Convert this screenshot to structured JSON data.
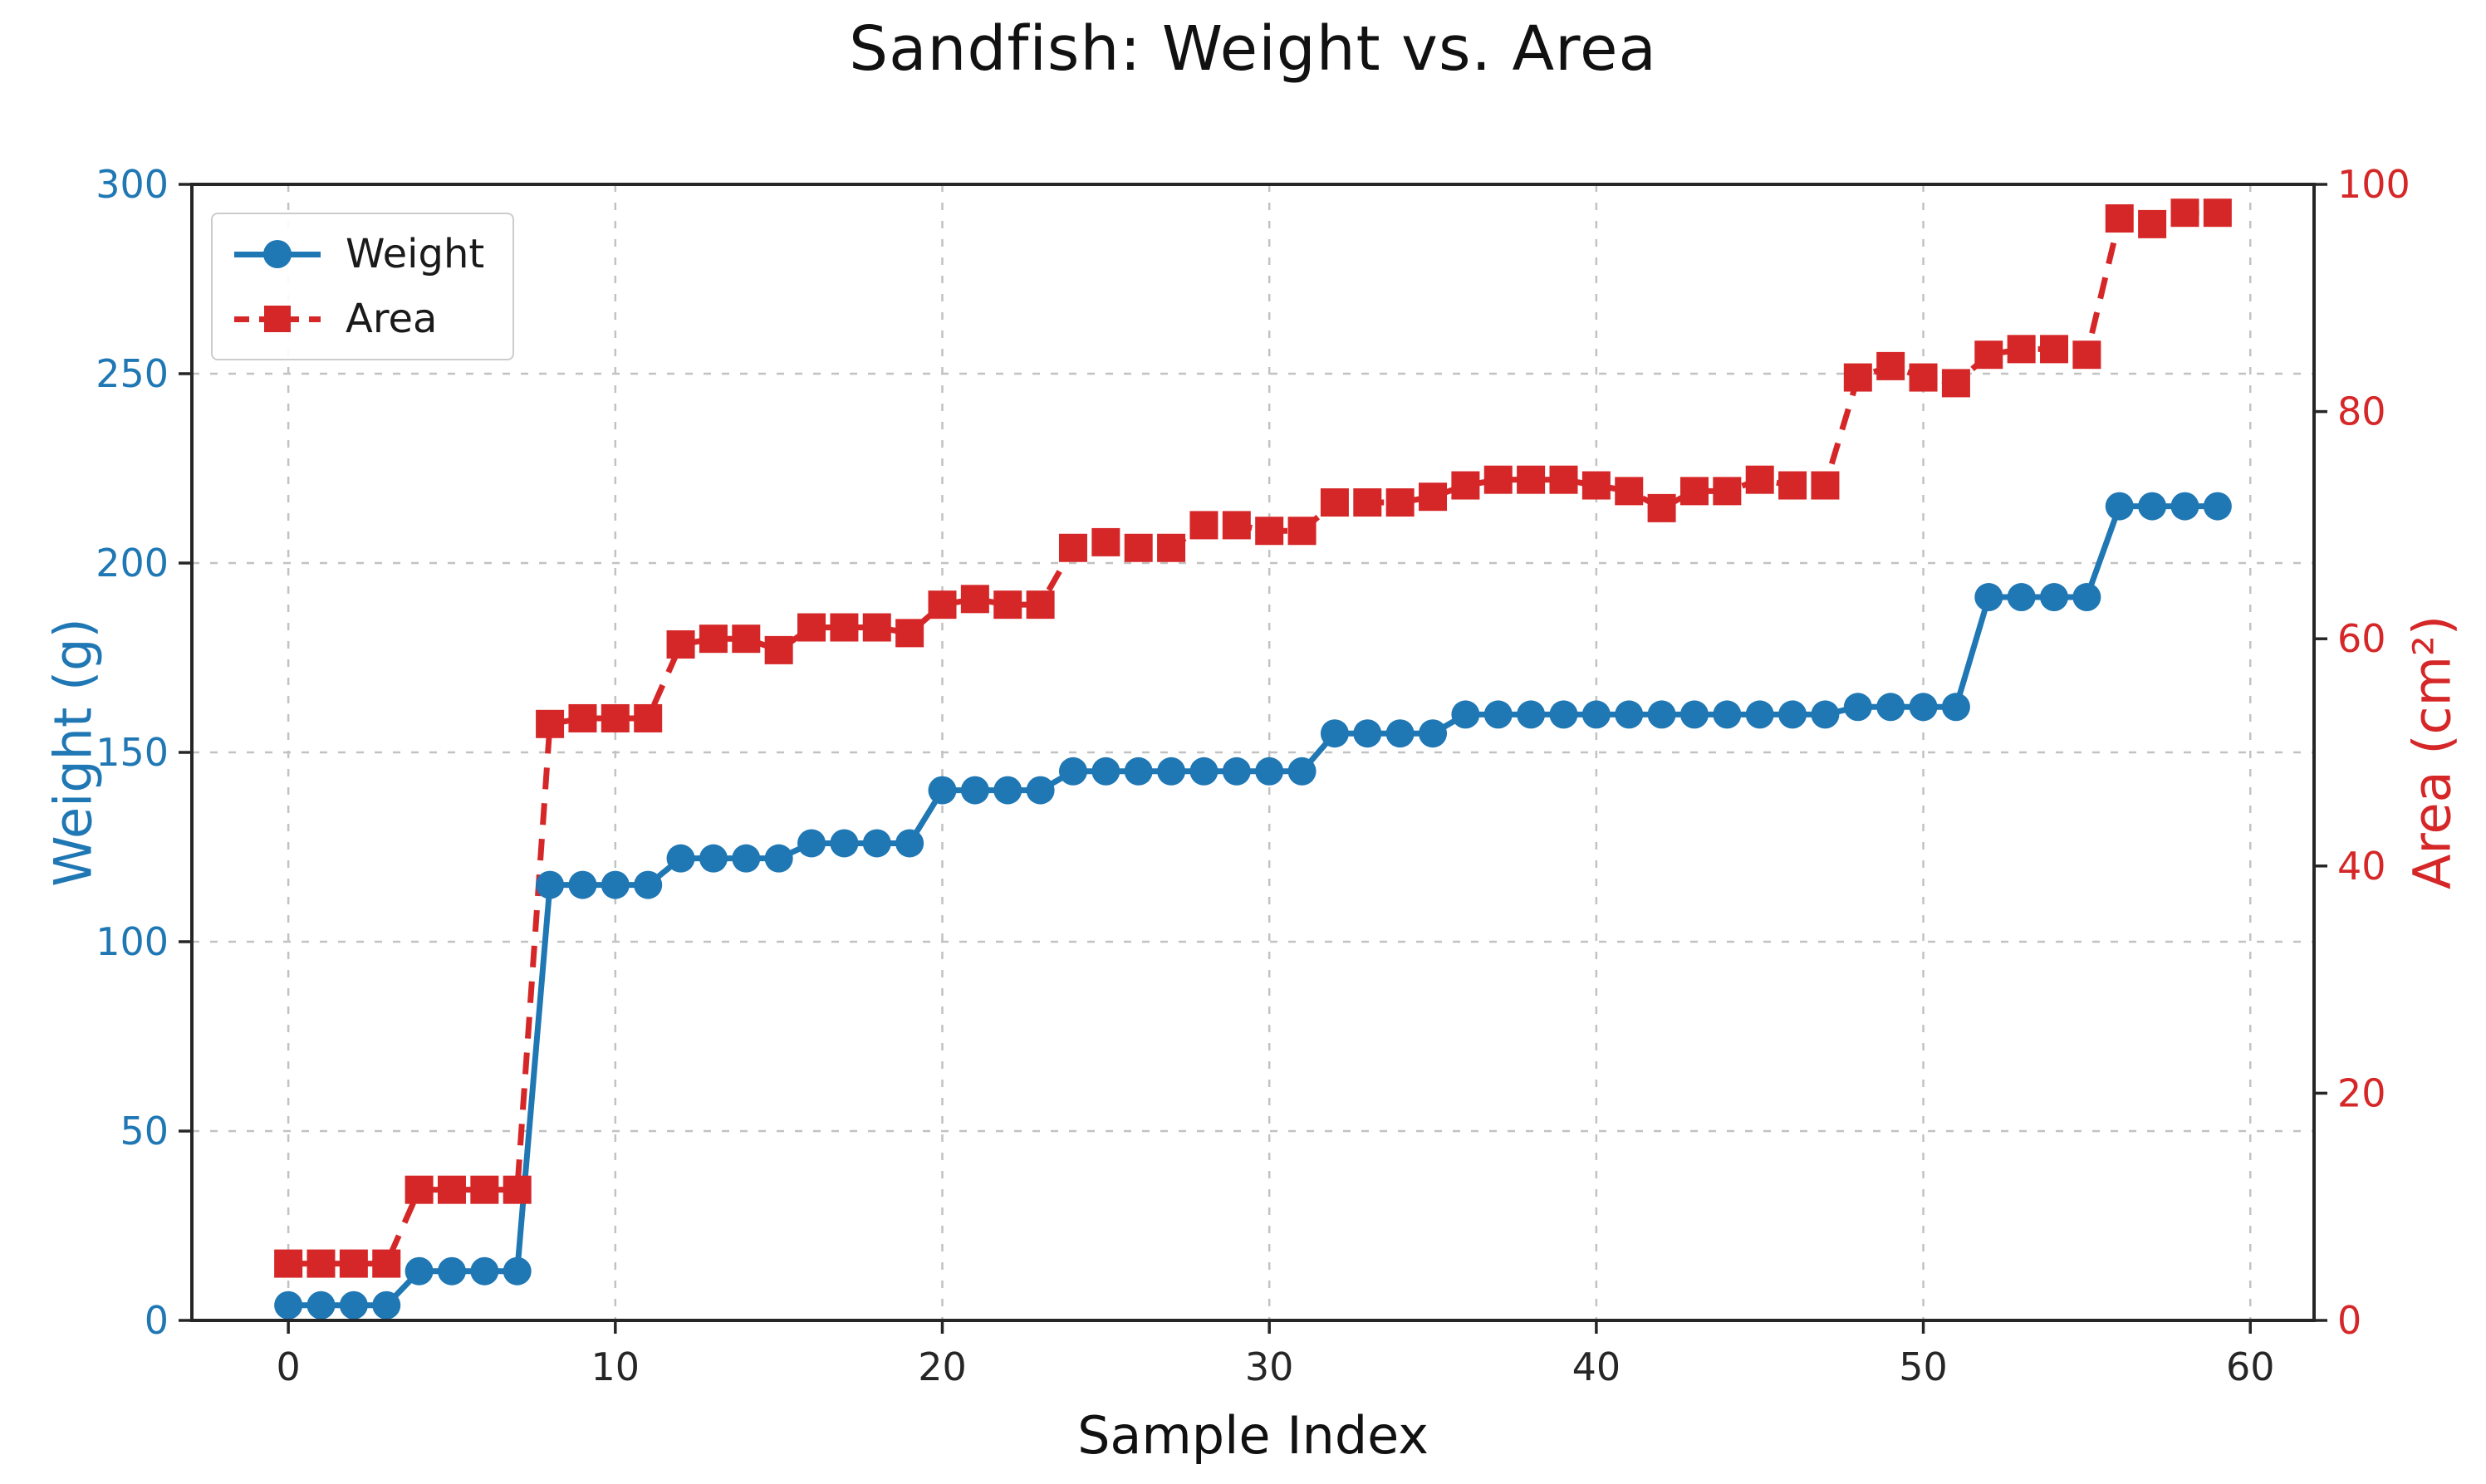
{
  "figure": {
    "title": "Sandfish: Weight vs. Area",
    "xlabel": "Sample Index",
    "ylabel_left": "Weight (g)",
    "ylabel_right": "Area (cm²)"
  },
  "chart_data": {
    "type": "line",
    "title": "Sandfish: Weight vs. Area",
    "xlabel": "Sample Index",
    "x_ticks": [
      0,
      10,
      20,
      30,
      40,
      50,
      60
    ],
    "xlim": [
      -2.95,
      61.95
    ],
    "grid": true,
    "legend_position": "upper left",
    "x": [
      0,
      1,
      2,
      3,
      4,
      5,
      6,
      7,
      8,
      9,
      10,
      11,
      12,
      13,
      14,
      15,
      16,
      17,
      18,
      19,
      20,
      21,
      22,
      23,
      24,
      25,
      26,
      27,
      28,
      29,
      30,
      31,
      32,
      33,
      34,
      35,
      36,
      37,
      38,
      39,
      40,
      41,
      42,
      43,
      44,
      45,
      46,
      47,
      48,
      49,
      50,
      51,
      52,
      53,
      54,
      55,
      56,
      57,
      58,
      59
    ],
    "series": [
      {
        "name": "Weight",
        "axis": "left",
        "ylabel": "Weight (g)",
        "color": "#1f77b4",
        "marker": "circle",
        "linestyle": "solid",
        "ylim": [
          0,
          300
        ],
        "ticks": [
          0,
          50,
          100,
          150,
          200,
          250,
          300
        ],
        "values": [
          4,
          4,
          4,
          4,
          13,
          13,
          13,
          13,
          115,
          115,
          115,
          115,
          122,
          122,
          122,
          122,
          126,
          126,
          126,
          126,
          140,
          140,
          140,
          140,
          145,
          145,
          145,
          145,
          145,
          145,
          145,
          145,
          155,
          155,
          155,
          155,
          160,
          160,
          160,
          160,
          160,
          160,
          160,
          160,
          160,
          160,
          160,
          160,
          162,
          162,
          162,
          162,
          191,
          191,
          191,
          191,
          215,
          215,
          215,
          215
        ]
      },
      {
        "name": "Area",
        "axis": "right",
        "ylabel": "Area (cm²)",
        "color": "#d62728",
        "marker": "square",
        "linestyle": "dashed",
        "ylim": [
          0,
          100
        ],
        "ticks": [
          0,
          20,
          40,
          60,
          80,
          100
        ],
        "values": [
          5,
          5,
          5,
          5,
          11.5,
          11.5,
          11.5,
          11.5,
          52.5,
          53,
          53,
          53,
          59.5,
          60,
          60,
          59,
          61,
          61,
          61,
          60.5,
          63,
          63.5,
          63,
          63,
          68,
          68.5,
          68,
          68,
          70,
          70,
          69.5,
          69.5,
          72,
          72,
          72,
          72.5,
          73.5,
          74,
          74,
          74,
          73.5,
          73,
          71.5,
          73,
          73,
          74,
          73.5,
          73.5,
          83,
          84,
          83,
          82.5,
          85,
          85.5,
          85.5,
          85,
          97,
          96.5,
          97.5,
          97.5
        ]
      }
    ],
    "style": {
      "accent_blue": "#1f77b4",
      "accent_red": "#d62728",
      "grid_color": "#b8b8b8",
      "spine_color": "#262626",
      "tick_label_color_x": "#262626"
    }
  }
}
